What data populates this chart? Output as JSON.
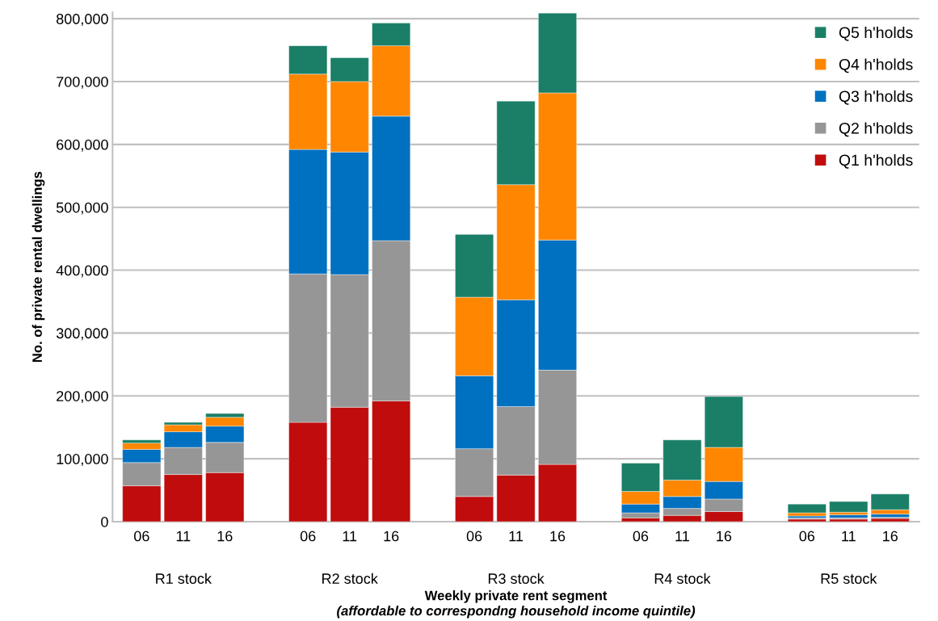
{
  "chart_data": {
    "type": "bar",
    "stacked": true,
    "xlabel": "Weekly private rent segment\n(affordable to correspondng household income quintile)",
    "ylabel": "No. of private rental dwellings",
    "categories": [
      "06",
      "11",
      "16",
      null,
      "06",
      "11",
      "16",
      null,
      "06",
      "11",
      "16",
      null,
      "06",
      "11",
      "16",
      null,
      "06",
      "11",
      "16"
    ],
    "annotations": [
      "R1 stock",
      "R2 stock",
      "R3 stock",
      "R4 stock",
      "R5 stock"
    ],
    "series": [
      {
        "name": "Q1 h'holds",
        "color": "#c00c0c",
        "values": [
          57000,
          75000,
          78000,
          null,
          158000,
          182000,
          192000,
          null,
          40000,
          74000,
          91000,
          null,
          6000,
          10000,
          16000,
          null,
          4000,
          4000,
          5000
        ]
      },
      {
        "name": "Q2 h'holds",
        "color": "#969696",
        "values": [
          37000,
          43000,
          48000,
          null,
          236000,
          211000,
          255000,
          null,
          76000,
          109000,
          150000,
          null,
          8000,
          11000,
          20000,
          null,
          2000,
          2000,
          2000
        ]
      },
      {
        "name": "Q3 h'holds",
        "color": "#0070c0",
        "values": [
          21000,
          25000,
          26000,
          null,
          198000,
          195000,
          198000,
          null,
          116000,
          170000,
          207000,
          null,
          14000,
          19000,
          28000,
          null,
          3000,
          5000,
          5000
        ]
      },
      {
        "name": "Q4 h'holds",
        "color": "#ff8600",
        "values": [
          10000,
          11000,
          14000,
          null,
          120000,
          112000,
          112000,
          null,
          125000,
          183000,
          234000,
          null,
          20000,
          26000,
          54000,
          null,
          5000,
          4000,
          7000
        ]
      },
      {
        "name": "Q5 h'holds",
        "color": "#1b7f67",
        "values": [
          5000,
          4000,
          6000,
          null,
          45000,
          38000,
          36000,
          null,
          100000,
          133000,
          127000,
          null,
          45000,
          64000,
          81000,
          null,
          14000,
          17000,
          25000
        ]
      }
    ],
    "ylim": [
      0,
      810000
    ],
    "yticks": [
      0,
      {
        "value": 100000,
        "label": "100,000"
      },
      {
        "value": 200000,
        "label": "200,000"
      },
      {
        "value": 300000,
        "label": "300,000"
      },
      {
        "value": 400000,
        "label": "400,000"
      },
      {
        "value": 500000,
        "label": "500,000"
      },
      {
        "value": 600000,
        "label": "600,000"
      },
      {
        "value": 700000,
        "label": "700,000"
      },
      {
        "value": 800000,
        "label": "800,000"
      }
    ],
    "grid": "y",
    "legend": "top right"
  }
}
